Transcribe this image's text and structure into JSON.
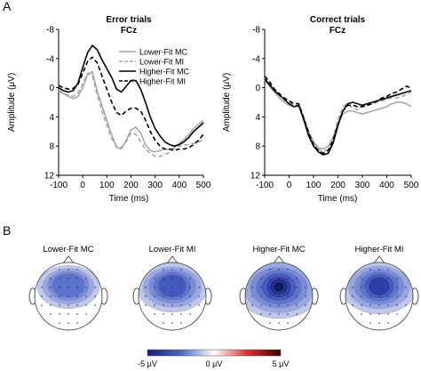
{
  "panel_labels": [
    "A",
    "B"
  ],
  "chart_data": [
    {
      "type": "line",
      "title": "Error trials",
      "subtitle": "FCz",
      "xlabel": "Time (ms)",
      "ylabel": "Amplitude (μV)",
      "xlim": [
        -100,
        500
      ],
      "ylim": [
        12,
        -8
      ],
      "y_inverted": true,
      "xticks": [
        "-100",
        "0",
        "100",
        "200",
        "300",
        "400",
        "500"
      ],
      "yticks": [
        "-8",
        "-4",
        "0",
        "4",
        "8",
        "12"
      ],
      "legend_position": "top-right",
      "x": [
        -100,
        -80,
        -60,
        -40,
        -20,
        0,
        20,
        40,
        60,
        80,
        100,
        120,
        140,
        160,
        180,
        200,
        220,
        240,
        260,
        280,
        300,
        320,
        340,
        360,
        380,
        400,
        420,
        440,
        460,
        480,
        500
      ],
      "series": [
        {
          "name": "Lower-Fit MC",
          "color": "#a6a6a6",
          "dash": "solid",
          "values": [
            0.5,
            0.8,
            1.2,
            1.5,
            1.2,
            0,
            -1.8,
            -2.2,
            0.5,
            2.5,
            4.5,
            6.5,
            8.2,
            8.4,
            7.2,
            5.8,
            5.4,
            6.2,
            7.8,
            8.6,
            8.8,
            8.6,
            8.4,
            8.5,
            8.2,
            7.6,
            7.1,
            6.4,
            5.6,
            5.0,
            4.5
          ]
        },
        {
          "name": "Lower-Fit MI",
          "color": "#a6a6a6",
          "dash": "dashed",
          "values": [
            0.3,
            0.7,
            1.0,
            1.2,
            0.8,
            -0.6,
            -2.0,
            -1.6,
            1.0,
            3.2,
            5.2,
            7.0,
            8.0,
            8.2,
            7.4,
            6.2,
            6.4,
            7.4,
            8.4,
            9.0,
            9.4,
            9.4,
            9.2,
            8.8,
            8.4,
            8.0,
            7.8,
            7.8,
            7.6,
            7.4,
            7.2
          ]
        },
        {
          "name": "Higher-Fit MC",
          "color": "#000000",
          "dash": "solid",
          "values": [
            0.0,
            0.4,
            0.6,
            0.4,
            -0.6,
            -2.8,
            -4.8,
            -5.8,
            -5.2,
            -3.8,
            -2.6,
            -1.4,
            0.2,
            0.6,
            -0.2,
            -1.0,
            -1.0,
            0.2,
            2.0,
            4.0,
            5.6,
            6.6,
            7.4,
            7.8,
            8.0,
            7.8,
            7.4,
            6.8,
            6.0,
            5.4,
            4.8
          ]
        },
        {
          "name": "Higher-Fit MI",
          "color": "#000000",
          "dash": "dashed",
          "values": [
            -0.3,
            0.0,
            0.2,
            0.1,
            -0.4,
            -2.0,
            -3.6,
            -4.2,
            -3.4,
            -1.6,
            0.2,
            2.0,
            3.4,
            3.8,
            3.2,
            2.8,
            2.8,
            3.2,
            4.4,
            6.0,
            7.2,
            8.0,
            8.4,
            8.4,
            8.6,
            8.4,
            8.4,
            8.2,
            7.8,
            7.2,
            6.4
          ]
        }
      ]
    },
    {
      "type": "line",
      "title": "Correct trials",
      "subtitle": "FCz",
      "xlabel": "Time (ms)",
      "ylabel": "Amplitude (μV)",
      "xlim": [
        -100,
        500
      ],
      "ylim": [
        12,
        -8
      ],
      "y_inverted": true,
      "xticks": [
        "-100",
        "0",
        "100",
        "200",
        "300",
        "400",
        "500"
      ],
      "yticks": [
        "-8",
        "-4",
        "0",
        "4",
        "8",
        "12"
      ],
      "x": [
        -100,
        -80,
        -60,
        -40,
        -20,
        0,
        20,
        40,
        60,
        80,
        100,
        120,
        140,
        160,
        180,
        200,
        220,
        240,
        260,
        280,
        300,
        320,
        340,
        360,
        380,
        400,
        420,
        440,
        460,
        480,
        500
      ],
      "series": [
        {
          "name": "Lower-Fit MC",
          "color": "#a6a6a6",
          "dash": "solid",
          "values": [
            -1.0,
            -0.2,
            0.6,
            1.4,
            2.0,
            2.4,
            2.6,
            2.6,
            4.0,
            6.0,
            7.4,
            8.2,
            8.4,
            8.0,
            6.8,
            5.0,
            3.6,
            3.2,
            3.2,
            3.4,
            3.6,
            3.4,
            3.2,
            3.0,
            2.8,
            2.6,
            2.2,
            2.0,
            2.0,
            2.2,
            2.6
          ]
        },
        {
          "name": "Lower-Fit MI",
          "color": "#a6a6a6",
          "dash": "dashed",
          "values": [
            -1.4,
            -0.6,
            0.4,
            1.0,
            1.6,
            2.0,
            2.4,
            2.6,
            4.4,
            6.4,
            7.6,
            8.4,
            8.8,
            8.4,
            6.8,
            4.4,
            2.6,
            2.2,
            2.8,
            3.0,
            2.6,
            2.4,
            2.2,
            2.0,
            1.8,
            1.6,
            1.4,
            1.4,
            1.2,
            1.0,
            0.6
          ]
        },
        {
          "name": "Higher-Fit MC",
          "color": "#000000",
          "dash": "solid",
          "values": [
            -1.2,
            -0.4,
            0.4,
            1.0,
            1.6,
            2.2,
            2.6,
            2.4,
            4.4,
            6.6,
            8.0,
            8.8,
            9.2,
            9.0,
            7.6,
            5.2,
            3.2,
            2.2,
            2.0,
            2.2,
            2.4,
            2.2,
            2.0,
            1.8,
            1.6,
            1.4,
            1.2,
            1.0,
            0.8,
            0.6,
            0.4
          ]
        },
        {
          "name": "Higher-Fit MI",
          "color": "#000000",
          "dash": "dashed",
          "values": [
            -1.6,
            -0.8,
            0.2,
            0.8,
            1.4,
            1.8,
            2.2,
            2.2,
            4.2,
            6.2,
            7.8,
            8.6,
            9.0,
            8.6,
            7.2,
            5.0,
            3.2,
            2.4,
            2.4,
            2.6,
            2.6,
            2.4,
            2.2,
            1.8,
            1.4,
            1.2,
            0.8,
            0.6,
            0.2,
            -0.2,
            0.0
          ]
        }
      ]
    }
  ],
  "topomaps": [
    {
      "title": "Lower-Fit MC",
      "intensity": 0.45,
      "focus": "frontal-central"
    },
    {
      "title": "Lower-Fit MI",
      "intensity": 0.65,
      "focus": "frontal"
    },
    {
      "title": "Higher-Fit MC",
      "intensity": 1.0,
      "focus": "frontal-central"
    },
    {
      "title": "Higher-Fit MI",
      "intensity": 0.75,
      "focus": "frontal"
    }
  ],
  "colorbar": {
    "labels": [
      "-5 μV",
      "0 μV",
      "5 μV"
    ],
    "colors": [
      "#1a1a80",
      "#4a66c8",
      "#ffffff",
      "#e03030",
      "#3a0000"
    ]
  }
}
